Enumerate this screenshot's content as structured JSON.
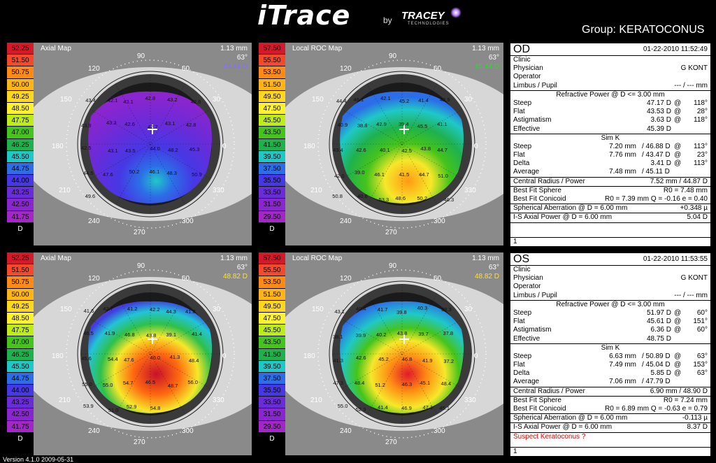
{
  "header": {
    "logo_text": "iTrace",
    "by_text": "by",
    "company": "TRACEY",
    "company_sub": "TECHNOLOGIES",
    "group_label": "Group:  KERATOCONUS"
  },
  "scale": [
    "52.25",
    "51.50",
    "50.75",
    "50.00",
    "49.25",
    "48.50",
    "47.75",
    "47.00",
    "46.25",
    "45.50",
    "44.75",
    "44.00",
    "43.25",
    "42.50",
    "41.75",
    "D"
  ],
  "roc_scale": [
    "57.50",
    "55.50",
    "53.50",
    "51.50",
    "49.50",
    "47.50",
    "45.50",
    "43.50",
    "41.50",
    "39.50",
    "37.50",
    "35.50",
    "33.50",
    "31.50",
    "29.50",
    "D"
  ],
  "scale_colors": [
    "#d4192b",
    "#f54a2a",
    "#ff8a14",
    "#ffb614",
    "#ffd81e",
    "#fff22a",
    "#bdec18",
    "#45c41b",
    "#1fb14e",
    "#1fc8c8",
    "#2c6ee7",
    "#4638e5",
    "#6a2bd8",
    "#8a25cf",
    "#a326c6"
  ],
  "angles": [
    "90",
    "120",
    "60",
    "150",
    "30",
    "180",
    "0",
    "210",
    "330",
    "240",
    "300",
    "270"
  ],
  "maps": {
    "od_axial": {
      "label": "Axial Map",
      "mm": "1.13 mm",
      "deg": "63°",
      "power": "43.94 D",
      "power_color": "#8a6cff",
      "values": [
        "43.4",
        "42.1",
        "43.1",
        "42.8",
        "43.2",
        "42.6",
        "43.9",
        "43.3",
        "42.6",
        "42.7",
        "43.1",
        "42.8",
        "42.5",
        "43.1",
        "43.5",
        "44.0",
        "48.2",
        "45.3",
        "44.5",
        "47.6",
        "50.2",
        "46.1",
        "48.3",
        "50.9",
        "49.6"
      ]
    },
    "od_roc": {
      "label": "Local ROC Map",
      "mm": "1.13 mm",
      "deg": "63°",
      "power": "45.44 D",
      "power_color": "#37d13b",
      "values": [
        "44.4",
        "46.1",
        "42.1",
        "45.2",
        "41.4",
        "42.9",
        "40.9",
        "38.8",
        "42.9",
        "39.4",
        "45.5",
        "41.1",
        "43.4",
        "42.6",
        "40.1",
        "42.5",
        "43.8",
        "44.7",
        "42.0",
        "39.0",
        "46.1",
        "41.5",
        "44.7",
        "51.0",
        "50.8",
        "40.6",
        "53.3",
        "48.6",
        "50.2",
        "46.3"
      ]
    },
    "os_axial": {
      "label": "Axial Map",
      "mm": "1.13 mm",
      "deg": "63°",
      "power": "48.82 D",
      "power_color": "#ffe12a",
      "values": [
        "41.6",
        "42.7",
        "41.2",
        "42.2",
        "44.3",
        "41.8",
        "46.5",
        "41.9",
        "46.8",
        "43.8",
        "39.1",
        "41.4",
        "45.6",
        "54.4",
        "47.6",
        "46.0",
        "41.3",
        "48.4",
        "55.0",
        "55.0",
        "54.7",
        "46.5",
        "48.7",
        "56.0",
        "53.9",
        "51.0",
        "52.9",
        "54.8"
      ]
    },
    "os_roc": {
      "label": "Local ROC Map",
      "mm": "1.13 mm",
      "deg": "63°",
      "power": "48.82 D",
      "power_color": "#ffe12a",
      "values": [
        "43.1",
        "40.4",
        "41.7",
        "39.8",
        "40.3",
        "39.3",
        "38.1",
        "39.9",
        "40.2",
        "43.8",
        "39.7",
        "37.8",
        "41.3",
        "42.6",
        "45.2",
        "46.8",
        "41.9",
        "37.2",
        "47.3",
        "48.4",
        "51.2",
        "46.3",
        "45.1",
        "48.4",
        "55.0",
        "52.3",
        "41.4",
        "46.9",
        "47.1",
        "45.1"
      ]
    }
  },
  "od": {
    "eye": "OD",
    "date": "01-22-2010  11:52:49",
    "clinic": "Clinic",
    "physician_label": "Physician",
    "physician": "G KONT",
    "operator": "Operator",
    "limbus_label": "Limbus / Pupil",
    "limbus": "--- / --- mm",
    "refractive_header": "Refractive Power @ D <= 3.00 mm",
    "steep_label": "Steep",
    "steep_val": "47.17 D",
    "steep_at": "@",
    "steep_deg": "118°",
    "flat_label": "Flat",
    "flat_val": "43.53 D",
    "flat_at": "@",
    "flat_deg": "28°",
    "astig_label": "Astigmatism",
    "astig_val": "3.63 D",
    "astig_at": "@",
    "astig_deg": "118°",
    "effective_label": "Effective",
    "effective_val": "45.39 D",
    "simk_header": "Sim K",
    "sk_steep_label": "Steep",
    "sk_steep_mm": "7.20 mm",
    "sk_steep_d": "/ 46.88 D",
    "sk_steep_at": "@",
    "sk_steep_deg": "113°",
    "sk_flat_label": "Flat",
    "sk_flat_mm": "7.76 mm",
    "sk_flat_d": "/ 43.47 D",
    "sk_flat_at": "@",
    "sk_flat_deg": "23°",
    "sk_delta_label": "Delta",
    "sk_delta_d": "3.41 D",
    "sk_delta_at": "@",
    "sk_delta_deg": "113°",
    "sk_avg_label": "Average",
    "sk_avg_mm": "7.48 mm",
    "sk_avg_d": "/ 45.11 D",
    "central_label": "Central Radius / Power",
    "central_val": "7.52 mm / 44.87 D",
    "bfs_label": "Best Fit Sphere",
    "bfs_val": "R0 = 7.48 mm",
    "bfc_label": "Best Fit Conicoid",
    "bfc_val": "R0 = 7.39 mm  Q = -0.16  e = 0.40",
    "sa_label": "Spherical Aberration @ D = 6.00 mm",
    "sa_val": "+0.348 µ",
    "is_label": "I-S Axial Power @ D = 6.00 mm",
    "is_val": "5.04 D",
    "note": "",
    "footer_num": "1"
  },
  "os": {
    "eye": "OS",
    "date": "01-22-2010  11:53:55",
    "clinic": "Clinic",
    "physician_label": "Physician",
    "physician": "G KONT",
    "operator": "Operator",
    "limbus_label": "Limbus / Pupil",
    "limbus": "--- / --- mm",
    "refractive_header": "Refractive Power @ D <= 3.00 mm",
    "steep_label": "Steep",
    "steep_val": "51.97 D",
    "steep_at": "@",
    "steep_deg": "60°",
    "flat_label": "Flat",
    "flat_val": "45.61 D",
    "flat_at": "@",
    "flat_deg": "151°",
    "astig_label": "Astigmatism",
    "astig_val": "6.36 D",
    "astig_at": "@",
    "astig_deg": "60°",
    "effective_label": "Effective",
    "effective_val": "48.75 D",
    "simk_header": "Sim K",
    "sk_steep_label": "Steep",
    "sk_steep_mm": "6.63 mm",
    "sk_steep_d": "/ 50.89 D",
    "sk_steep_at": "@",
    "sk_steep_deg": "63°",
    "sk_flat_label": "Flat",
    "sk_flat_mm": "7.49 mm",
    "sk_flat_d": "/ 45.04 D",
    "sk_flat_at": "@",
    "sk_flat_deg": "153°",
    "sk_delta_label": "Delta",
    "sk_delta_d": "5.85 D",
    "sk_delta_at": "@",
    "sk_delta_deg": "63°",
    "sk_avg_label": "Average",
    "sk_avg_mm": "7.06 mm",
    "sk_avg_d": "/ 47.79 D",
    "central_label": "Central Radius / Power",
    "central_val": "6.90 mm / 48.90 D",
    "bfs_label": "Best Fit Sphere",
    "bfs_val": "R0 = 7.24 mm",
    "bfc_label": "Best Fit Conicoid",
    "bfc_val": "R0 = 6.89 mm  Q = -0.63  e = 0.79",
    "sa_label": "Spherical Aberration @ D = 6.00 mm",
    "sa_val": "-0.113 µ",
    "is_label": "I-S Axial Power @ D = 6.00 mm",
    "is_val": "8.37 D",
    "note": "Suspect Keratoconus ?",
    "footer_num": "1"
  },
  "version": "Version 4.1.0 2009-05-31"
}
